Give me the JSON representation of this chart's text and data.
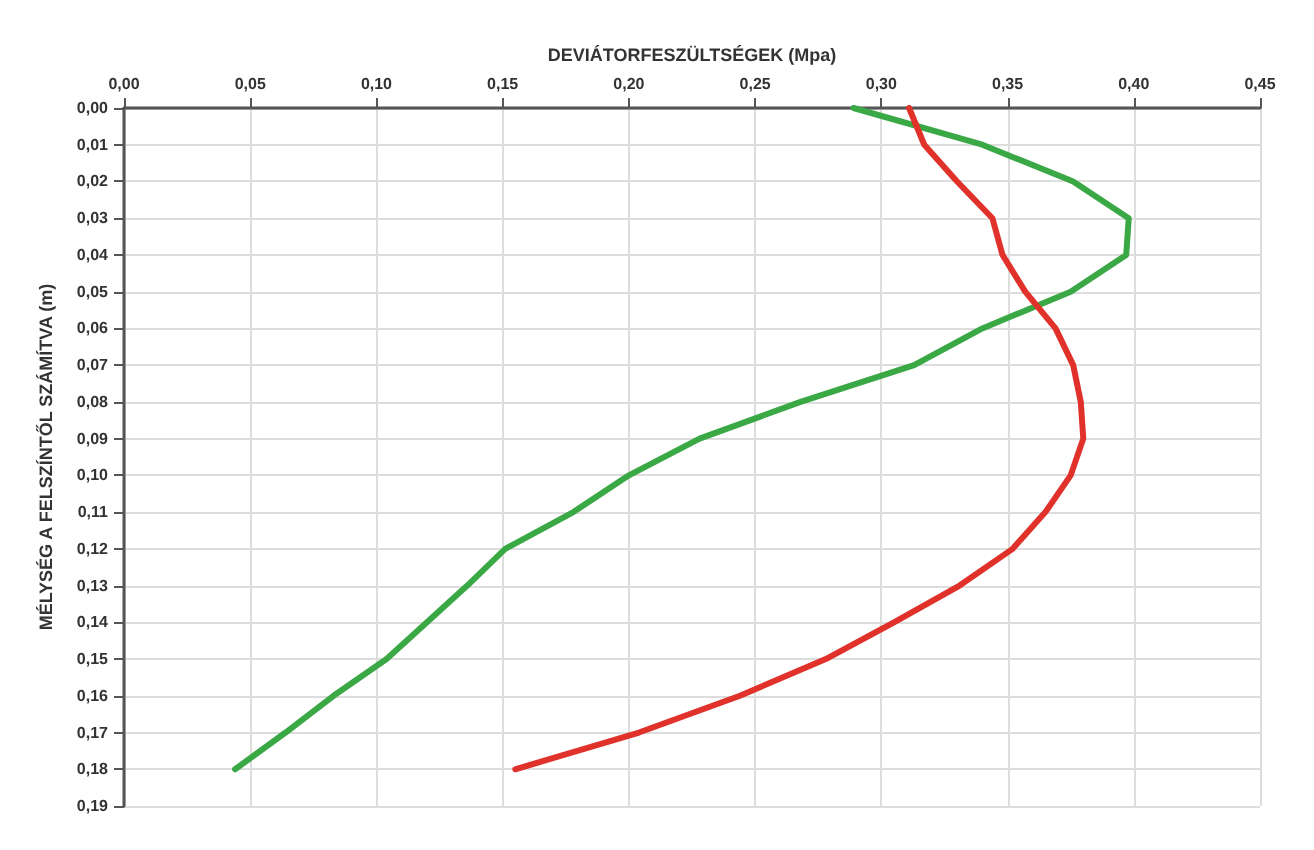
{
  "chart_data": {
    "type": "line",
    "xlabel": "DEVIÁTORFESZÜLTSÉGEK (Mpa)",
    "ylabel": "MÉLYSÉG A FELSZÍNTŐL SZÁMÍTVA (m)",
    "xlim": [
      0,
      0.45
    ],
    "xticks": [
      {
        "value": 0,
        "label": "0,00"
      },
      {
        "value": 0.05,
        "label": "0,05"
      },
      {
        "value": 0.1,
        "label": "0,10"
      },
      {
        "value": 0.15,
        "label": "0,15"
      },
      {
        "value": 0.2,
        "label": "0,20"
      },
      {
        "value": 0.25,
        "label": "0,25"
      },
      {
        "value": 0.3,
        "label": "0,30"
      },
      {
        "value": 0.35,
        "label": "0,35"
      },
      {
        "value": 0.4,
        "label": "0,40"
      },
      {
        "value": 0.45,
        "label": "0,45"
      }
    ],
    "ylim": [
      0.19,
      0
    ],
    "yticks": [
      {
        "value": 0,
        "label": "0,00"
      },
      {
        "value": 0.01,
        "label": "0,01"
      },
      {
        "value": 0.02,
        "label": "0,02"
      },
      {
        "value": 0.03,
        "label": "0,03"
      },
      {
        "value": 0.04,
        "label": "0,04"
      },
      {
        "value": 0.05,
        "label": "0,05"
      },
      {
        "value": 0.06,
        "label": "0,06"
      },
      {
        "value": 0.07,
        "label": "0,07"
      },
      {
        "value": 0.08,
        "label": "0,08"
      },
      {
        "value": 0.09,
        "label": "0,09"
      },
      {
        "value": 0.1,
        "label": "0,10"
      },
      {
        "value": 0.11,
        "label": "0,11"
      },
      {
        "value": 0.12,
        "label": "0,12"
      },
      {
        "value": 0.13,
        "label": "0,13"
      },
      {
        "value": 0.14,
        "label": "0,14"
      },
      {
        "value": 0.15,
        "label": "0,15"
      },
      {
        "value": 0.16,
        "label": "0,16"
      },
      {
        "value": 0.17,
        "label": "0,17"
      },
      {
        "value": 0.18,
        "label": "0,18"
      },
      {
        "value": 0.19,
        "label": "0,19"
      }
    ],
    "grid": true,
    "marker": "none",
    "line_style": "solid",
    "series": [
      {
        "color": "#3aa845",
        "x": [
          0.289,
          0.34,
          0.376,
          0.398,
          0.397,
          0.375,
          0.34,
          0.313,
          0.268,
          0.228,
          0.2,
          0.178,
          0.151,
          0.136,
          0.12,
          0.104,
          0.083,
          0.064,
          0.044
        ],
        "values": [
          0,
          0.01,
          0.02,
          0.03,
          0.04,
          0.05,
          0.06,
          0.07,
          0.08,
          0.09,
          0.1,
          0.11,
          0.12,
          0.13,
          0.14,
          0.15,
          0.16,
          0.17,
          0.18
        ]
      },
      {
        "color": "#e0312a",
        "x": [
          0.311,
          0.317,
          0.33,
          0.344,
          0.348,
          0.357,
          0.369,
          0.376,
          0.379,
          0.38,
          0.375,
          0.365,
          0.352,
          0.331,
          0.305,
          0.278,
          0.244,
          0.204,
          0.155
        ],
        "values": [
          0,
          0.01,
          0.02,
          0.03,
          0.04,
          0.05,
          0.06,
          0.07,
          0.08,
          0.09,
          0.1,
          0.11,
          0.12,
          0.13,
          0.14,
          0.15,
          0.16,
          0.17,
          0.18
        ]
      }
    ]
  }
}
